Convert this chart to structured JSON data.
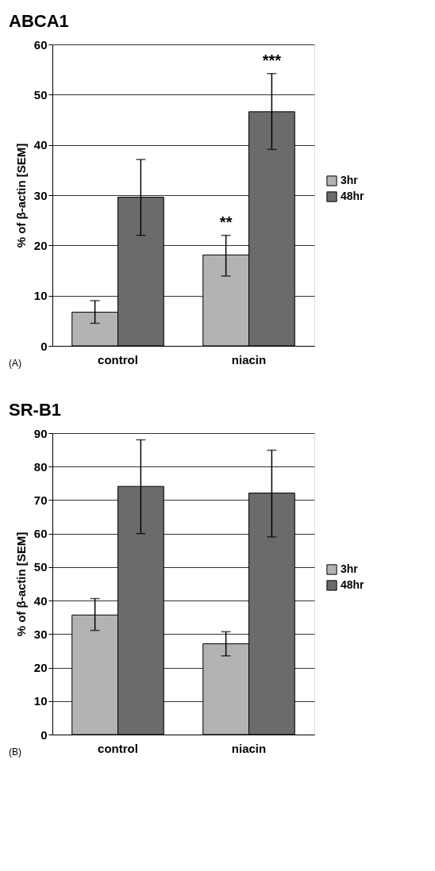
{
  "chart_data": [
    {
      "type": "bar",
      "title": "ABCA1",
      "ylabel": "% of β-actin [SEM]",
      "categories": [
        "control",
        "niacin"
      ],
      "series": [
        {
          "name": "3hr",
          "color": "#b3b3b3",
          "values": [
            6.7,
            18.1
          ],
          "errors": [
            [
              4.5,
              9.0
            ],
            [
              13.9,
              22.0
            ]
          ]
        },
        {
          "name": "48hr",
          "color": "#6b6b6b",
          "values": [
            29.6,
            46.6
          ],
          "errors": [
            [
              22.0,
              37.1
            ],
            [
              39.1,
              54.2
            ]
          ]
        }
      ],
      "ylim": [
        0,
        60
      ],
      "yticks": [
        0,
        10,
        20,
        30,
        40,
        50,
        60
      ],
      "grid": "y",
      "legend": "right",
      "annotations": [
        {
          "text": "**",
          "x": "niacin",
          "y": 22.0
        },
        {
          "text": "***",
          "x": "niacin",
          "y": 46.6
        },
        "(A)"
      ]
    },
    {
      "type": "bar",
      "title": "SR-B1",
      "ylabel": "% of β-actin [SEM]",
      "categories": [
        "control",
        "niacin"
      ],
      "series": [
        {
          "name": "3hr",
          "color": "#b3b3b3",
          "values": [
            35.7,
            27.1
          ],
          "errors": [
            [
              31.1,
              40.6
            ],
            [
              23.5,
              30.7
            ]
          ]
        },
        {
          "name": "48hr",
          "color": "#6b6b6b",
          "values": [
            74.1,
            72.1
          ],
          "errors": [
            [
              60.0,
              88.0
            ],
            [
              59.0,
              84.9
            ]
          ]
        }
      ],
      "ylim": [
        0,
        90
      ],
      "yticks": [
        0,
        10,
        20,
        30,
        40,
        50,
        60,
        70,
        80,
        90
      ],
      "grid": "y",
      "legend": "right",
      "annotations": [
        "(B)"
      ]
    }
  ]
}
